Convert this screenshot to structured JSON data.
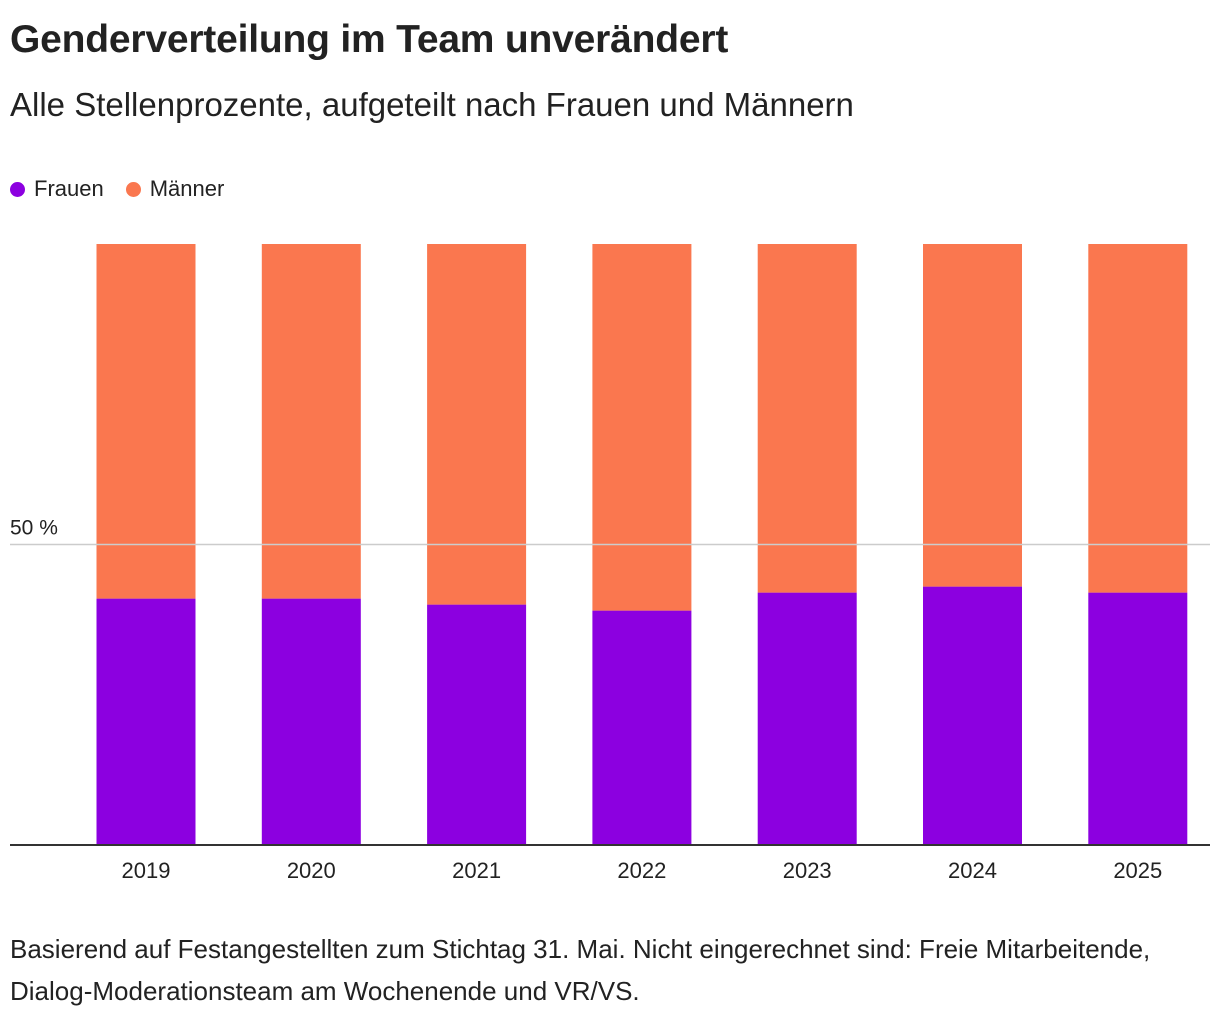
{
  "title": "Genderverteilung im Team unverändert",
  "subtitle": "Alle Stellenprozente, aufgeteilt nach Frauen und Männern",
  "footnote": "Basierend auf Festangestellten zum Stichtag 31. Mai. Nicht eingerechnet sind: Freie Mitarbeitende, Dialog-Moderationsteam am Wochenende und VR/VS.",
  "legend": [
    {
      "label": "Frauen",
      "color": "#8c00e0"
    },
    {
      "label": "Männer",
      "color": "#fa774f"
    }
  ],
  "chart_data": {
    "type": "bar",
    "stacked": true,
    "categories": [
      "2019",
      "2020",
      "2021",
      "2022",
      "2023",
      "2024",
      "2025"
    ],
    "series": [
      {
        "name": "Frauen",
        "color": "#8c00e0",
        "values": [
          41,
          41,
          40,
          39,
          42,
          43,
          42
        ]
      },
      {
        "name": "Männer",
        "color": "#fa774f",
        "values": [
          59,
          59,
          60,
          61,
          58,
          57,
          58
        ]
      }
    ],
    "ylim": [
      0,
      100
    ],
    "reference_line": {
      "value": 50,
      "label": "50 %"
    },
    "xlabel": "",
    "ylabel": "",
    "legend_position": "top-left",
    "grid": false
  }
}
